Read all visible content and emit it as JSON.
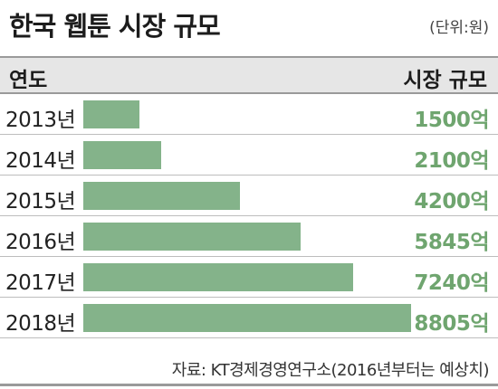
{
  "header": {
    "title": "한국 웹툰 시장 규모",
    "unit": "(단위:원)",
    "col_year": "연도",
    "col_size": "시장 규모"
  },
  "chart_data": {
    "type": "bar",
    "orientation": "horizontal",
    "title": "한국 웹툰 시장 규모",
    "categories": [
      "2013년",
      "2014년",
      "2015년",
      "2016년",
      "2017년",
      "2018년"
    ],
    "values": [
      1500,
      2100,
      4200,
      5845,
      7240,
      8805
    ],
    "value_labels": [
      "1500억",
      "2100억",
      "4200억",
      "5845억",
      "7240억",
      "8805억"
    ],
    "unit": "(단위:원)",
    "xlabel": "연도",
    "ylabel": "시장 규모",
    "bar_color": "#84b38a",
    "label_color": "#6fa56f"
  },
  "source": "자료: KT경제경영연구소(2016년부터는 예상치)",
  "colors": {
    "bar": "#84b38a",
    "value_text": "#6fa56f",
    "header_bg": "#e6e6e6"
  }
}
